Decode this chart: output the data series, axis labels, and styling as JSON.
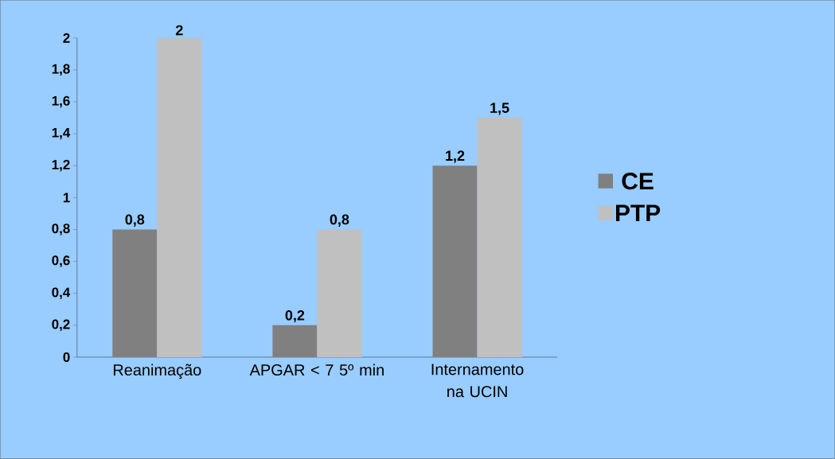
{
  "chart_data": {
    "type": "bar",
    "categories": [
      "Reanimação",
      "APGAR < 7 5º min",
      "Internamento na UCIN"
    ],
    "series": [
      {
        "name": "CE",
        "color": "#808080",
        "values": [
          0.8,
          0.2,
          1.2
        ],
        "value_labels": [
          "0,8",
          "0,2",
          "1,2"
        ]
      },
      {
        "name": "PTP",
        "color": "#c0c0c0",
        "values": [
          2,
          0.8,
          1.5
        ],
        "value_labels": [
          "2",
          "0,8",
          "1,5"
        ]
      }
    ],
    "ylim": [
      0,
      2
    ],
    "yticks": [
      0,
      {
        "value": 0.2,
        "label": "0,2"
      },
      {
        "value": 0.4,
        "label": "0,4"
      },
      {
        "value": 0.6,
        "label": "0,6"
      },
      {
        "value": 0.8,
        "label": "0,8"
      },
      1,
      {
        "value": 1.2,
        "label": "1,2"
      },
      {
        "value": 1.4,
        "label": "1,4"
      },
      {
        "value": 1.6,
        "label": "1,6"
      },
      {
        "value": 1.8,
        "label": "1,8"
      },
      2
    ],
    "legend": "right"
  }
}
